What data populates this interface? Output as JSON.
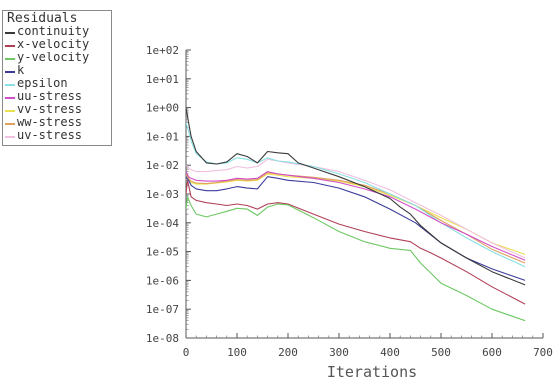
{
  "chart_data": {
    "type": "line",
    "title": "",
    "xlabel": "Iterations",
    "ylabel": "",
    "xlim": [
      0,
      700
    ],
    "ylim": [
      1e-08,
      100
    ],
    "yscale": "log",
    "grid": false,
    "legend_title": "Residuals",
    "legend_position": "top-left",
    "x_ticks": [
      "0",
      "100",
      "200",
      "300",
      "400",
      "500",
      "600",
      "700"
    ],
    "y_ticks": [
      "1e+02",
      "1e+01",
      "1e+00",
      "1e-01",
      "1e-02",
      "1e-03",
      "1e-04",
      "1e-05",
      "1e-06",
      "1e-07",
      "1e-08"
    ],
    "series": [
      {
        "name": "continuity",
        "color": "#3a3a3a",
        "x": [
          0,
          5,
          10,
          20,
          40,
          60,
          80,
          100,
          120,
          140,
          160,
          180,
          200,
          220,
          250,
          300,
          350,
          400,
          420,
          440,
          460,
          480,
          500,
          550,
          600,
          665
        ],
        "y": [
          1,
          0.3,
          0.1,
          0.03,
          0.012,
          0.011,
          0.013,
          0.025,
          0.02,
          0.012,
          0.03,
          0.027,
          0.025,
          0.012,
          0.008,
          0.004,
          0.0018,
          0.0007,
          0.00035,
          0.0002,
          8e-05,
          4e-05,
          2e-05,
          6e-06,
          2e-06,
          7e-07
        ]
      },
      {
        "name": "x-velocity",
        "color": "#b04058",
        "x": [
          0,
          3,
          10,
          20,
          40,
          60,
          80,
          100,
          120,
          140,
          160,
          180,
          200,
          250,
          300,
          350,
          400,
          440,
          460,
          480,
          500,
          550,
          600,
          665
        ],
        "y": [
          0.001,
          0.003,
          0.0008,
          0.0006,
          0.0005,
          0.00045,
          0.0004,
          0.00045,
          0.0004,
          0.0003,
          0.00045,
          0.0005,
          0.00045,
          0.0002,
          9e-05,
          5e-05,
          3e-05,
          2.2e-05,
          1.3e-05,
          9e-06,
          6e-06,
          2e-06,
          6e-07,
          1.5e-07
        ]
      },
      {
        "name": "y-velocity",
        "color": "#6ec864",
        "x": [
          0,
          3,
          10,
          20,
          40,
          60,
          80,
          100,
          120,
          140,
          160,
          180,
          200,
          250,
          300,
          350,
          400,
          440,
          460,
          480,
          500,
          550,
          600,
          665
        ],
        "y": [
          0.0003,
          0.0008,
          0.0004,
          0.0002,
          0.00016,
          0.0002,
          0.00025,
          0.00032,
          0.0003,
          0.00018,
          0.00035,
          0.00045,
          0.00042,
          0.00015,
          5e-05,
          2.2e-05,
          1.3e-05,
          1.1e-05,
          4e-06,
          1.8e-06,
          8e-07,
          3e-07,
          1e-07,
          4e-08
        ]
      },
      {
        "name": "k",
        "color": "#3c3c9c",
        "x": [
          0,
          5,
          10,
          20,
          40,
          60,
          80,
          100,
          120,
          140,
          160,
          180,
          200,
          250,
          300,
          350,
          400,
          450,
          500,
          550,
          600,
          665
        ],
        "y": [
          0.004,
          0.003,
          0.002,
          0.0015,
          0.0013,
          0.0013,
          0.0015,
          0.0018,
          0.0016,
          0.0015,
          0.004,
          0.0035,
          0.003,
          0.0025,
          0.0016,
          0.0008,
          0.0003,
          0.0001,
          2e-05,
          6e-06,
          2.5e-06,
          1e-06
        ]
      },
      {
        "name": "epsilon",
        "color": "#8ae0e4",
        "x": [
          0,
          5,
          10,
          20,
          40,
          60,
          80,
          100,
          120,
          140,
          160,
          180,
          200,
          250,
          300,
          350,
          400,
          450,
          500,
          550,
          600,
          665
        ],
        "y": [
          0.3,
          0.15,
          0.07,
          0.025,
          0.013,
          0.011,
          0.012,
          0.018,
          0.016,
          0.012,
          0.018,
          0.014,
          0.013,
          0.009,
          0.005,
          0.0025,
          0.001,
          0.0004,
          0.0001,
          3e-05,
          1e-05,
          3e-06
        ]
      },
      {
        "name": "uu-stress",
        "color": "#d24ec8",
        "x": [
          0,
          5,
          10,
          20,
          40,
          60,
          80,
          100,
          120,
          140,
          160,
          180,
          200,
          250,
          300,
          350,
          400,
          450,
          500,
          550,
          600,
          665
        ],
        "y": [
          0.006,
          0.004,
          0.0035,
          0.003,
          0.0028,
          0.0028,
          0.003,
          0.0035,
          0.0033,
          0.0035,
          0.006,
          0.005,
          0.0045,
          0.0035,
          0.0025,
          0.0015,
          0.0008,
          0.0003,
          0.0001,
          4e-05,
          1.5e-05,
          5e-06
        ]
      },
      {
        "name": "vv-stress",
        "color": "#e8e050",
        "x": [
          0,
          5,
          10,
          20,
          40,
          60,
          80,
          100,
          120,
          140,
          160,
          180,
          200,
          250,
          300,
          350,
          400,
          450,
          500,
          550,
          600,
          665
        ],
        "y": [
          0.004,
          0.003,
          0.0025,
          0.0022,
          0.0022,
          0.0024,
          0.0026,
          0.003,
          0.0028,
          0.003,
          0.005,
          0.0045,
          0.004,
          0.0035,
          0.0028,
          0.0018,
          0.0009,
          0.0004,
          0.00015,
          6e-05,
          2e-05,
          8e-06
        ]
      },
      {
        "name": "ww-stress",
        "color": "#e0a060",
        "x": [
          0,
          5,
          10,
          20,
          40,
          60,
          80,
          100,
          120,
          140,
          160,
          180,
          200,
          250,
          300,
          350,
          400,
          450,
          500,
          550,
          600,
          665
        ],
        "y": [
          0.005,
          0.0035,
          0.0028,
          0.0024,
          0.0023,
          0.0025,
          0.0028,
          0.0032,
          0.003,
          0.0032,
          0.0055,
          0.005,
          0.0045,
          0.0038,
          0.003,
          0.002,
          0.001,
          0.0004,
          0.00012,
          4e-05,
          1.2e-05,
          4e-06
        ]
      },
      {
        "name": "uv-stress",
        "color": "#f0c0e0",
        "x": [
          0,
          5,
          10,
          20,
          40,
          60,
          80,
          100,
          120,
          140,
          160,
          180,
          200,
          250,
          300,
          350,
          400,
          450,
          500,
          550,
          600,
          665
        ],
        "y": [
          0.01,
          0.008,
          0.007,
          0.006,
          0.006,
          0.0065,
          0.007,
          0.009,
          0.008,
          0.009,
          0.016,
          0.014,
          0.012,
          0.009,
          0.006,
          0.003,
          0.0014,
          0.0005,
          0.00018,
          6e-05,
          2e-05,
          6e-06
        ]
      }
    ]
  }
}
